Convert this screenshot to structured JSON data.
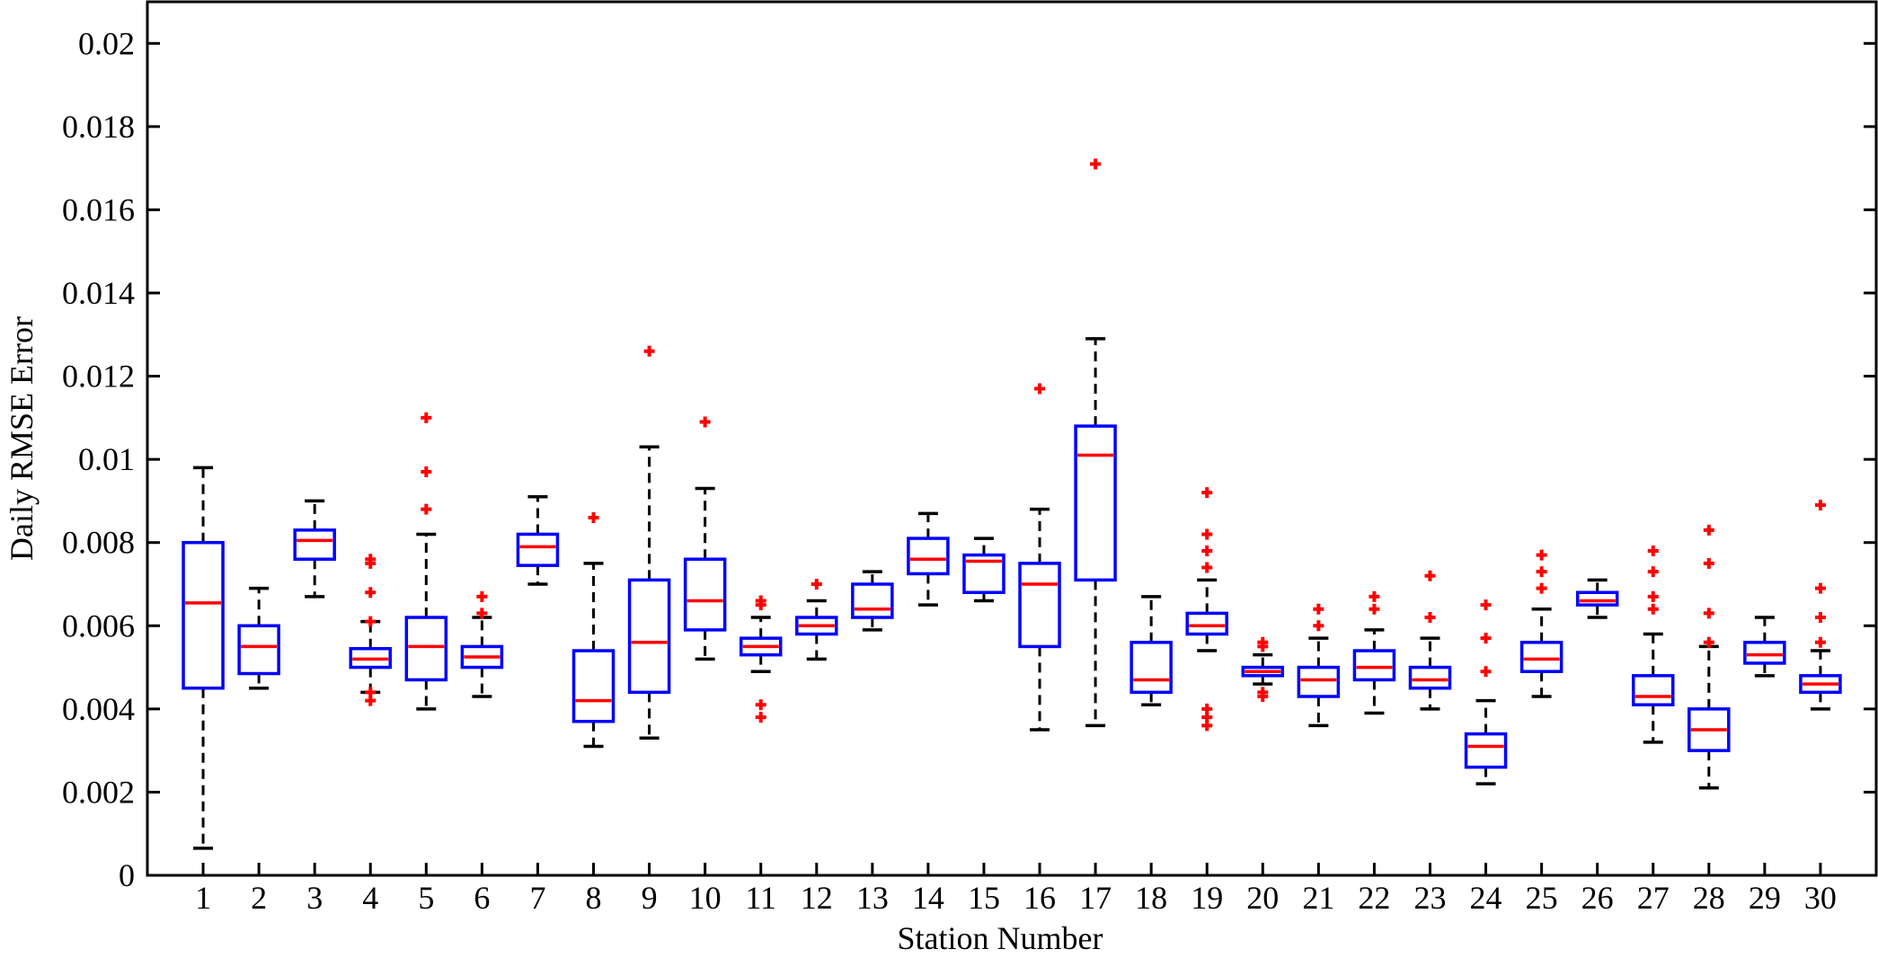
{
  "chart_data": {
    "type": "box",
    "title": "",
    "xlabel": "Station Number",
    "ylabel": "Daily RMSE Error",
    "ylim": [
      0,
      0.021
    ],
    "yticks": [
      0,
      0.002,
      0.004,
      0.006,
      0.008,
      0.01,
      0.012,
      0.014,
      0.016,
      0.018,
      0.02
    ],
    "ytick_labels": [
      "0",
      "0.002",
      "0.004",
      "0.006",
      "0.008",
      "0.01",
      "0.012",
      "0.014",
      "0.016",
      "0.018",
      "0.02"
    ],
    "categories": [
      "1",
      "2",
      "3",
      "4",
      "5",
      "6",
      "7",
      "8",
      "9",
      "10",
      "11",
      "12",
      "13",
      "14",
      "15",
      "16",
      "17",
      "18",
      "19",
      "20",
      "21",
      "22",
      "23",
      "24",
      "25",
      "26",
      "27",
      "28",
      "29",
      "30"
    ],
    "colors": {
      "box": "#0000ff",
      "median": "#ff0000",
      "whisker": "#000000",
      "outlier": "#ff0000"
    },
    "grid": false,
    "boxes": [
      {
        "station": "1",
        "whislo": 0.00065,
        "q1": 0.0045,
        "med": 0.00655,
        "q3": 0.008,
        "whishi": 0.0098,
        "fliers": []
      },
      {
        "station": "2",
        "whislo": 0.0045,
        "q1": 0.00485,
        "med": 0.0055,
        "q3": 0.006,
        "whishi": 0.0069,
        "fliers": []
      },
      {
        "station": "3",
        "whislo": 0.0067,
        "q1": 0.0076,
        "med": 0.00805,
        "q3": 0.0083,
        "whishi": 0.009,
        "fliers": []
      },
      {
        "station": "4",
        "whislo": 0.0044,
        "q1": 0.005,
        "med": 0.0052,
        "q3": 0.00545,
        "whishi": 0.0061,
        "fliers": [
          0.0076,
          0.0075,
          0.0068,
          0.0061,
          0.0044,
          0.0042
        ]
      },
      {
        "station": "5",
        "whislo": 0.004,
        "q1": 0.0047,
        "med": 0.0055,
        "q3": 0.0062,
        "whishi": 0.0082,
        "fliers": [
          0.011,
          0.0097,
          0.0088
        ]
      },
      {
        "station": "6",
        "whislo": 0.0043,
        "q1": 0.005,
        "med": 0.00525,
        "q3": 0.0055,
        "whishi": 0.0062,
        "fliers": [
          0.0067,
          0.0063
        ]
      },
      {
        "station": "7",
        "whislo": 0.007,
        "q1": 0.00745,
        "med": 0.0079,
        "q3": 0.0082,
        "whishi": 0.0091,
        "fliers": []
      },
      {
        "station": "8",
        "whislo": 0.0031,
        "q1": 0.0037,
        "med": 0.0042,
        "q3": 0.0054,
        "whishi": 0.0075,
        "fliers": [
          0.0086
        ]
      },
      {
        "station": "9",
        "whislo": 0.0033,
        "q1": 0.0044,
        "med": 0.0056,
        "q3": 0.0071,
        "whishi": 0.0103,
        "fliers": [
          0.0126
        ]
      },
      {
        "station": "10",
        "whislo": 0.0052,
        "q1": 0.0059,
        "med": 0.0066,
        "q3": 0.0076,
        "whishi": 0.0093,
        "fliers": [
          0.0109
        ]
      },
      {
        "station": "11",
        "whislo": 0.0049,
        "q1": 0.0053,
        "med": 0.0055,
        "q3": 0.0057,
        "whishi": 0.0062,
        "fliers": [
          0.0066,
          0.0065,
          0.0041,
          0.0038
        ]
      },
      {
        "station": "12",
        "whislo": 0.0052,
        "q1": 0.0058,
        "med": 0.006,
        "q3": 0.0062,
        "whishi": 0.0066,
        "fliers": [
          0.007
        ]
      },
      {
        "station": "13",
        "whislo": 0.0059,
        "q1": 0.0062,
        "med": 0.0064,
        "q3": 0.007,
        "whishi": 0.0073,
        "fliers": []
      },
      {
        "station": "14",
        "whislo": 0.0065,
        "q1": 0.00725,
        "med": 0.0076,
        "q3": 0.0081,
        "whishi": 0.0087,
        "fliers": []
      },
      {
        "station": "15",
        "whislo": 0.0066,
        "q1": 0.0068,
        "med": 0.00755,
        "q3": 0.0077,
        "whishi": 0.0081,
        "fliers": []
      },
      {
        "station": "16",
        "whislo": 0.0035,
        "q1": 0.0055,
        "med": 0.007,
        "q3": 0.0075,
        "whishi": 0.0088,
        "fliers": [
          0.0117
        ]
      },
      {
        "station": "17",
        "whislo": 0.0036,
        "q1": 0.0071,
        "med": 0.0101,
        "q3": 0.0108,
        "whishi": 0.0129,
        "fliers": [
          0.0171
        ]
      },
      {
        "station": "18",
        "whislo": 0.0041,
        "q1": 0.0044,
        "med": 0.0047,
        "q3": 0.0056,
        "whishi": 0.0067,
        "fliers": []
      },
      {
        "station": "19",
        "whislo": 0.0054,
        "q1": 0.0058,
        "med": 0.006,
        "q3": 0.0063,
        "whishi": 0.0071,
        "fliers": [
          0.0092,
          0.0082,
          0.0078,
          0.0074,
          0.004,
          0.0038,
          0.0036
        ]
      },
      {
        "station": "20",
        "whislo": 0.0046,
        "q1": 0.0048,
        "med": 0.0049,
        "q3": 0.005,
        "whishi": 0.0053,
        "fliers": [
          0.0056,
          0.0055,
          0.0044,
          0.0043
        ]
      },
      {
        "station": "21",
        "whislo": 0.0036,
        "q1": 0.0043,
        "med": 0.0047,
        "q3": 0.005,
        "whishi": 0.0057,
        "fliers": [
          0.0064,
          0.006
        ]
      },
      {
        "station": "22",
        "whislo": 0.0039,
        "q1": 0.0047,
        "med": 0.005,
        "q3": 0.0054,
        "whishi": 0.0059,
        "fliers": [
          0.0067,
          0.0064
        ]
      },
      {
        "station": "23",
        "whislo": 0.004,
        "q1": 0.0045,
        "med": 0.0047,
        "q3": 0.005,
        "whishi": 0.0057,
        "fliers": [
          0.0072,
          0.0062
        ]
      },
      {
        "station": "24",
        "whislo": 0.0022,
        "q1": 0.0026,
        "med": 0.0031,
        "q3": 0.0034,
        "whishi": 0.0042,
        "fliers": [
          0.0065,
          0.0057,
          0.0049
        ]
      },
      {
        "station": "25",
        "whislo": 0.0043,
        "q1": 0.0049,
        "med": 0.0052,
        "q3": 0.0056,
        "whishi": 0.0064,
        "fliers": [
          0.0077,
          0.0073,
          0.0069
        ]
      },
      {
        "station": "26",
        "whislo": 0.0062,
        "q1": 0.0065,
        "med": 0.0066,
        "q3": 0.0068,
        "whishi": 0.0071,
        "fliers": []
      },
      {
        "station": "27",
        "whislo": 0.0032,
        "q1": 0.0041,
        "med": 0.0043,
        "q3": 0.0048,
        "whishi": 0.0058,
        "fliers": [
          0.0078,
          0.0073,
          0.0067,
          0.0064
        ]
      },
      {
        "station": "28",
        "whislo": 0.0021,
        "q1": 0.003,
        "med": 0.0035,
        "q3": 0.004,
        "whishi": 0.0055,
        "fliers": [
          0.0083,
          0.0075,
          0.0063,
          0.0056
        ]
      },
      {
        "station": "29",
        "whislo": 0.0048,
        "q1": 0.0051,
        "med": 0.0053,
        "q3": 0.0056,
        "whishi": 0.0062,
        "fliers": []
      },
      {
        "station": "30",
        "whislo": 0.004,
        "q1": 0.0044,
        "med": 0.0046,
        "q3": 0.0048,
        "whishi": 0.0054,
        "fliers": [
          0.0089,
          0.0069,
          0.0062,
          0.0056
        ]
      }
    ]
  }
}
